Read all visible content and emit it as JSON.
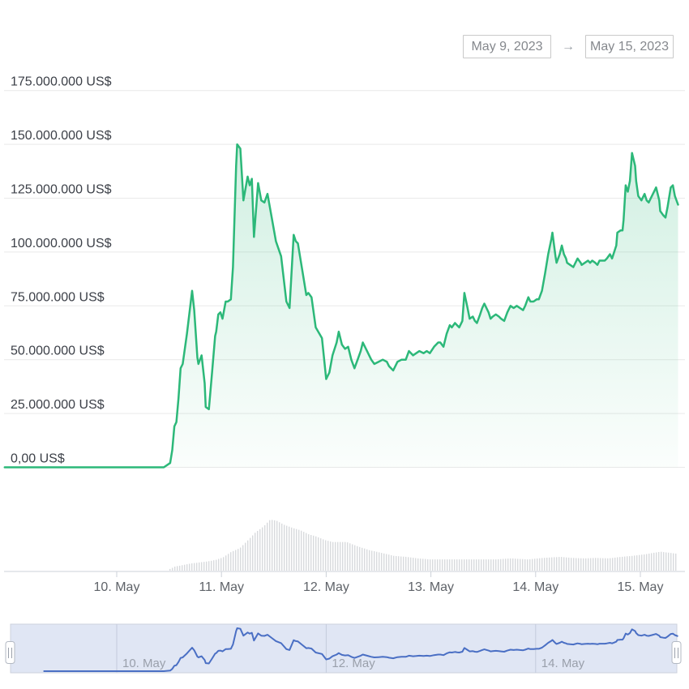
{
  "date_range": {
    "start": "May 9, 2023",
    "arrow": "→",
    "end": "May 15, 2023"
  },
  "chart_data": {
    "type": "area",
    "title": "",
    "x_unit": "day of May 2023",
    "y_unit": "US$",
    "grid": true,
    "y_axis": {
      "tick_values_musd": [
        175,
        150,
        125,
        100,
        75,
        50,
        25,
        0
      ],
      "tick_labels": [
        "175.000.000 US$",
        "150.000.000 US$",
        "125.000.000 US$",
        "100.000.000 US$",
        "75.000.000 US$",
        "50.000.000 US$",
        "25.000.000 US$",
        "0,00 US$"
      ]
    },
    "x_axis": {
      "tick_days": [
        10,
        11,
        12,
        13,
        14,
        15
      ],
      "tick_labels": [
        "10. May",
        "11. May",
        "12. May",
        "13. May",
        "14. May",
        "15. May"
      ]
    },
    "series": [
      {
        "name": "value-usd",
        "color": "#2cb879",
        "fill_top": "rgba(44,184,121,0.22)",
        "fill_bottom": "rgba(44,184,121,0.02)",
        "points": [
          [
            8.93,
            0
          ],
          [
            9.3,
            0
          ],
          [
            9.7,
            0
          ],
          [
            10.1,
            0
          ],
          [
            10.45,
            0
          ],
          [
            10.51,
            2
          ],
          [
            10.53,
            8
          ],
          [
            10.55,
            19
          ],
          [
            10.57,
            21
          ],
          [
            10.59,
            32
          ],
          [
            10.61,
            46
          ],
          [
            10.63,
            48
          ],
          [
            10.67,
            62
          ],
          [
            10.72,
            82
          ],
          [
            10.74,
            73
          ],
          [
            10.77,
            51
          ],
          [
            10.78,
            48
          ],
          [
            10.81,
            52
          ],
          [
            10.84,
            39
          ],
          [
            10.85,
            28
          ],
          [
            10.88,
            27
          ],
          [
            10.91,
            44
          ],
          [
            10.94,
            61
          ],
          [
            10.95,
            63
          ],
          [
            10.97,
            71
          ],
          [
            10.99,
            72
          ],
          [
            11.01,
            69
          ],
          [
            11.04,
            77
          ],
          [
            11.06,
            77
          ],
          [
            11.09,
            78
          ],
          [
            11.11,
            93
          ],
          [
            11.14,
            140
          ],
          [
            11.15,
            150
          ],
          [
            11.18,
            148
          ],
          [
            11.21,
            124
          ],
          [
            11.25,
            135
          ],
          [
            11.27,
            131
          ],
          [
            11.29,
            134
          ],
          [
            11.31,
            107
          ],
          [
            11.35,
            132
          ],
          [
            11.38,
            124
          ],
          [
            11.41,
            123
          ],
          [
            11.44,
            127
          ],
          [
            11.48,
            116
          ],
          [
            11.52,
            105
          ],
          [
            11.57,
            98
          ],
          [
            11.62,
            77
          ],
          [
            11.65,
            74
          ],
          [
            11.69,
            108
          ],
          [
            11.71,
            105
          ],
          [
            11.73,
            104
          ],
          [
            11.77,
            92
          ],
          [
            11.81,
            80
          ],
          [
            11.83,
            81
          ],
          [
            11.86,
            79
          ],
          [
            11.9,
            65
          ],
          [
            11.96,
            60
          ],
          [
            12.0,
            41
          ],
          [
            12.03,
            44
          ],
          [
            12.06,
            52
          ],
          [
            12.1,
            58
          ],
          [
            12.12,
            63
          ],
          [
            12.15,
            57
          ],
          [
            12.18,
            55
          ],
          [
            12.21,
            56
          ],
          [
            12.24,
            50
          ],
          [
            12.27,
            46
          ],
          [
            12.3,
            50
          ],
          [
            12.33,
            54
          ],
          [
            12.35,
            58
          ],
          [
            12.39,
            54
          ],
          [
            12.43,
            50
          ],
          [
            12.46,
            48
          ],
          [
            12.5,
            49
          ],
          [
            12.54,
            50
          ],
          [
            12.58,
            49
          ],
          [
            12.6,
            47
          ],
          [
            12.64,
            45
          ],
          [
            12.68,
            49
          ],
          [
            12.72,
            50
          ],
          [
            12.76,
            50
          ],
          [
            12.79,
            54
          ],
          [
            12.83,
            52
          ],
          [
            12.86,
            53
          ],
          [
            12.89,
            54
          ],
          [
            12.93,
            53
          ],
          [
            12.96,
            54
          ],
          [
            12.99,
            53
          ],
          [
            13.03,
            56
          ],
          [
            13.07,
            58
          ],
          [
            13.09,
            58
          ],
          [
            13.12,
            56
          ],
          [
            13.15,
            62
          ],
          [
            13.18,
            66
          ],
          [
            13.2,
            65
          ],
          [
            13.23,
            67
          ],
          [
            13.25,
            66
          ],
          [
            13.27,
            65
          ],
          [
            13.3,
            68
          ],
          [
            13.32,
            81
          ],
          [
            13.35,
            74
          ],
          [
            13.37,
            69
          ],
          [
            13.4,
            70
          ],
          [
            13.42,
            68
          ],
          [
            13.44,
            67
          ],
          [
            13.47,
            71
          ],
          [
            13.49,
            74
          ],
          [
            13.51,
            76
          ],
          [
            13.55,
            72
          ],
          [
            13.57,
            69
          ],
          [
            13.59,
            70
          ],
          [
            13.62,
            71
          ],
          [
            13.65,
            70
          ],
          [
            13.67,
            69
          ],
          [
            13.7,
            68
          ],
          [
            13.73,
            72
          ],
          [
            13.76,
            75
          ],
          [
            13.79,
            74
          ],
          [
            13.82,
            75
          ],
          [
            13.85,
            74
          ],
          [
            13.88,
            73
          ],
          [
            13.9,
            75
          ],
          [
            13.93,
            79
          ],
          [
            13.95,
            77
          ],
          [
            13.98,
            77
          ],
          [
            14.01,
            78
          ],
          [
            14.03,
            78
          ],
          [
            14.06,
            82
          ],
          [
            14.09,
            90
          ],
          [
            14.12,
            99
          ],
          [
            14.15,
            106
          ],
          [
            14.16,
            109
          ],
          [
            14.19,
            98
          ],
          [
            14.2,
            95
          ],
          [
            14.23,
            99
          ],
          [
            14.25,
            103
          ],
          [
            14.27,
            99
          ],
          [
            14.29,
            97
          ],
          [
            14.3,
            95
          ],
          [
            14.33,
            94
          ],
          [
            14.36,
            93
          ],
          [
            14.38,
            95
          ],
          [
            14.4,
            97
          ],
          [
            14.43,
            95
          ],
          [
            14.44,
            94
          ],
          [
            14.47,
            95
          ],
          [
            14.5,
            96
          ],
          [
            14.52,
            95
          ],
          [
            14.54,
            96
          ],
          [
            14.57,
            95
          ],
          [
            14.59,
            94
          ],
          [
            14.61,
            96
          ],
          [
            14.64,
            96
          ],
          [
            14.66,
            96
          ],
          [
            14.68,
            97
          ],
          [
            14.71,
            99
          ],
          [
            14.73,
            97
          ],
          [
            14.75,
            100
          ],
          [
            14.77,
            103
          ],
          [
            14.78,
            109
          ],
          [
            14.81,
            110
          ],
          [
            14.83,
            110
          ],
          [
            14.84,
            115
          ],
          [
            14.86,
            131
          ],
          [
            14.88,
            128
          ],
          [
            14.9,
            133
          ],
          [
            14.92,
            146
          ],
          [
            14.95,
            140
          ],
          [
            14.96,
            133
          ],
          [
            14.98,
            126
          ],
          [
            15.01,
            124
          ],
          [
            15.04,
            127
          ],
          [
            15.06,
            124
          ],
          [
            15.08,
            123
          ],
          [
            15.11,
            126
          ],
          [
            15.14,
            129
          ],
          [
            15.15,
            130
          ],
          [
            15.18,
            124
          ],
          [
            15.19,
            119
          ],
          [
            15.22,
            117
          ],
          [
            15.24,
            116
          ],
          [
            15.26,
            121
          ],
          [
            15.29,
            130
          ],
          [
            15.31,
            131
          ],
          [
            15.33,
            126
          ],
          [
            15.36,
            122
          ]
        ]
      }
    ],
    "volume_bars": {
      "color": "#d8dadd",
      "envelope_rel": [
        [
          10.5,
          0.03
        ],
        [
          10.55,
          0.08
        ],
        [
          10.63,
          0.11
        ],
        [
          10.7,
          0.14
        ],
        [
          10.78,
          0.16
        ],
        [
          10.86,
          0.18
        ],
        [
          10.94,
          0.21
        ],
        [
          11.01,
          0.26
        ],
        [
          11.09,
          0.37
        ],
        [
          11.17,
          0.44
        ],
        [
          11.25,
          0.6
        ],
        [
          11.32,
          0.75
        ],
        [
          11.4,
          0.87
        ],
        [
          11.46,
          1.0
        ],
        [
          11.52,
          0.98
        ],
        [
          11.59,
          0.9
        ],
        [
          11.67,
          0.84
        ],
        [
          11.75,
          0.79
        ],
        [
          11.83,
          0.71
        ],
        [
          11.9,
          0.67
        ],
        [
          11.98,
          0.6
        ],
        [
          12.06,
          0.56
        ],
        [
          12.19,
          0.56
        ],
        [
          12.29,
          0.48
        ],
        [
          12.41,
          0.4
        ],
        [
          12.52,
          0.35
        ],
        [
          12.64,
          0.29
        ],
        [
          12.76,
          0.27
        ],
        [
          12.87,
          0.24
        ],
        [
          12.99,
          0.22
        ],
        [
          13.14,
          0.22
        ],
        [
          13.3,
          0.22
        ],
        [
          13.45,
          0.22
        ],
        [
          13.61,
          0.22
        ],
        [
          13.76,
          0.24
        ],
        [
          13.92,
          0.22
        ],
        [
          14.07,
          0.25
        ],
        [
          14.23,
          0.27
        ],
        [
          14.34,
          0.25
        ],
        [
          14.46,
          0.24
        ],
        [
          14.57,
          0.25
        ],
        [
          14.69,
          0.24
        ],
        [
          14.81,
          0.27
        ],
        [
          14.92,
          0.29
        ],
        [
          15.04,
          0.32
        ],
        [
          15.12,
          0.35
        ],
        [
          15.19,
          0.37
        ],
        [
          15.27,
          0.35
        ],
        [
          15.35,
          0.33
        ]
      ]
    },
    "navigator": {
      "bg": "#e0e6f4",
      "border": "#ccd1dc",
      "gridline": "#c4cbdc",
      "line_color": "#4a6fc4",
      "label_color": "#9aa0ab",
      "tick_days": [
        10,
        12,
        14
      ],
      "tick_labels": [
        "10. May",
        "12. May",
        "14. May"
      ]
    }
  }
}
